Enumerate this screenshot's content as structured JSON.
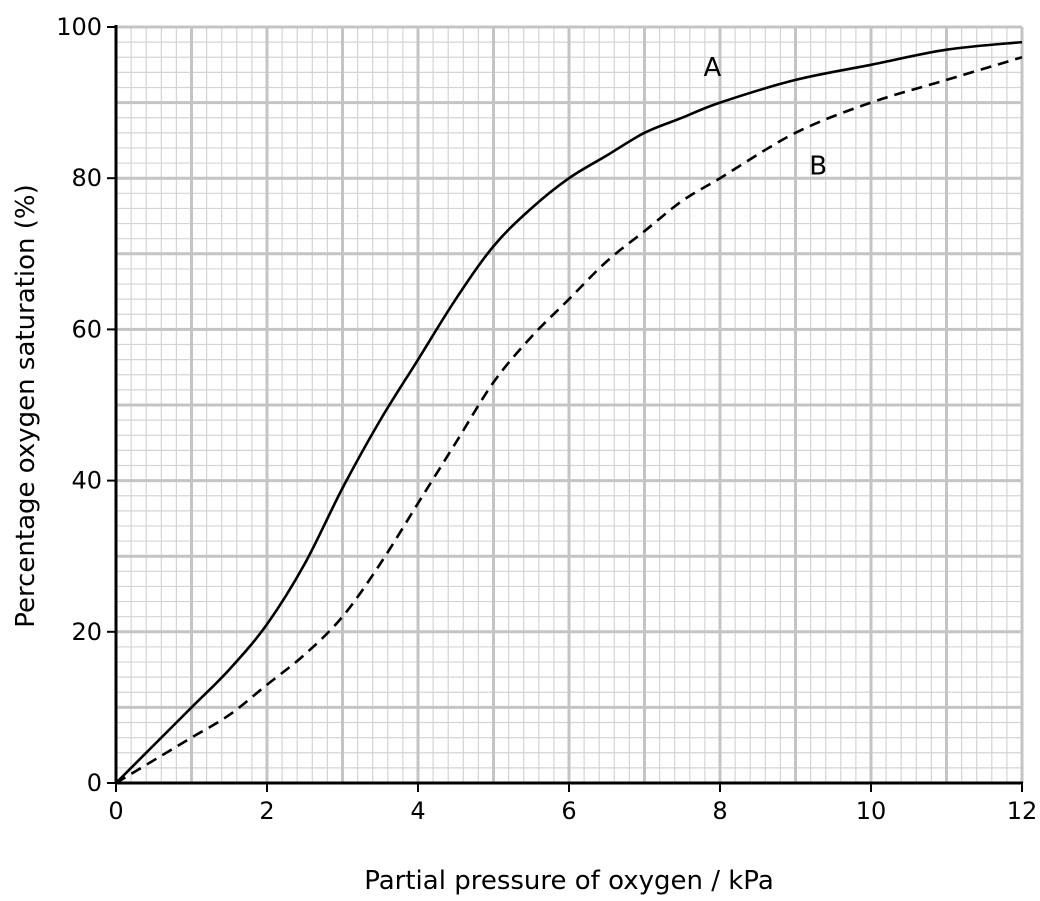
{
  "chart_data": {
    "type": "line",
    "title": "",
    "xlabel": "Partial pressure of oxygen / kPa",
    "ylabel": "Percentage oxygen saturation (%)",
    "xlim": [
      0,
      12
    ],
    "ylim": [
      0,
      100
    ],
    "xticks": [
      "0",
      "2",
      "4",
      "6",
      "8",
      "10",
      "12"
    ],
    "yticks": [
      "0",
      "20",
      "40",
      "60",
      "80",
      "100"
    ],
    "grid": true,
    "series": [
      {
        "name": "A",
        "line_style": "solid",
        "color": "#000000",
        "x": [
          0,
          0.5,
          1,
          1.5,
          2,
          2.5,
          3,
          3.5,
          4,
          4.5,
          5,
          5.5,
          6,
          6.5,
          7,
          7.5,
          8,
          9,
          10,
          11,
          12
        ],
        "y": [
          0,
          5,
          10,
          15,
          21,
          29,
          39,
          48,
          56,
          64,
          71,
          76,
          80,
          83,
          86,
          88,
          90,
          93,
          95,
          97,
          98
        ]
      },
      {
        "name": "B",
        "line_style": "dashed",
        "color": "#000000",
        "x": [
          0,
          0.5,
          1,
          1.5,
          2,
          2.5,
          3,
          3.5,
          4,
          4.5,
          5,
          5.5,
          6,
          6.5,
          7,
          7.5,
          8,
          9,
          10,
          11,
          12
        ],
        "y": [
          0,
          3,
          6,
          9,
          13,
          17,
          22,
          29,
          37,
          45,
          53,
          59,
          64,
          69,
          73,
          77,
          80,
          86,
          90,
          93,
          96
        ]
      }
    ],
    "annotations": [
      {
        "text": "A",
        "x": 7.9,
        "y": 93.5
      },
      {
        "text": "B",
        "x": 9.3,
        "y": 80.5
      }
    ]
  }
}
